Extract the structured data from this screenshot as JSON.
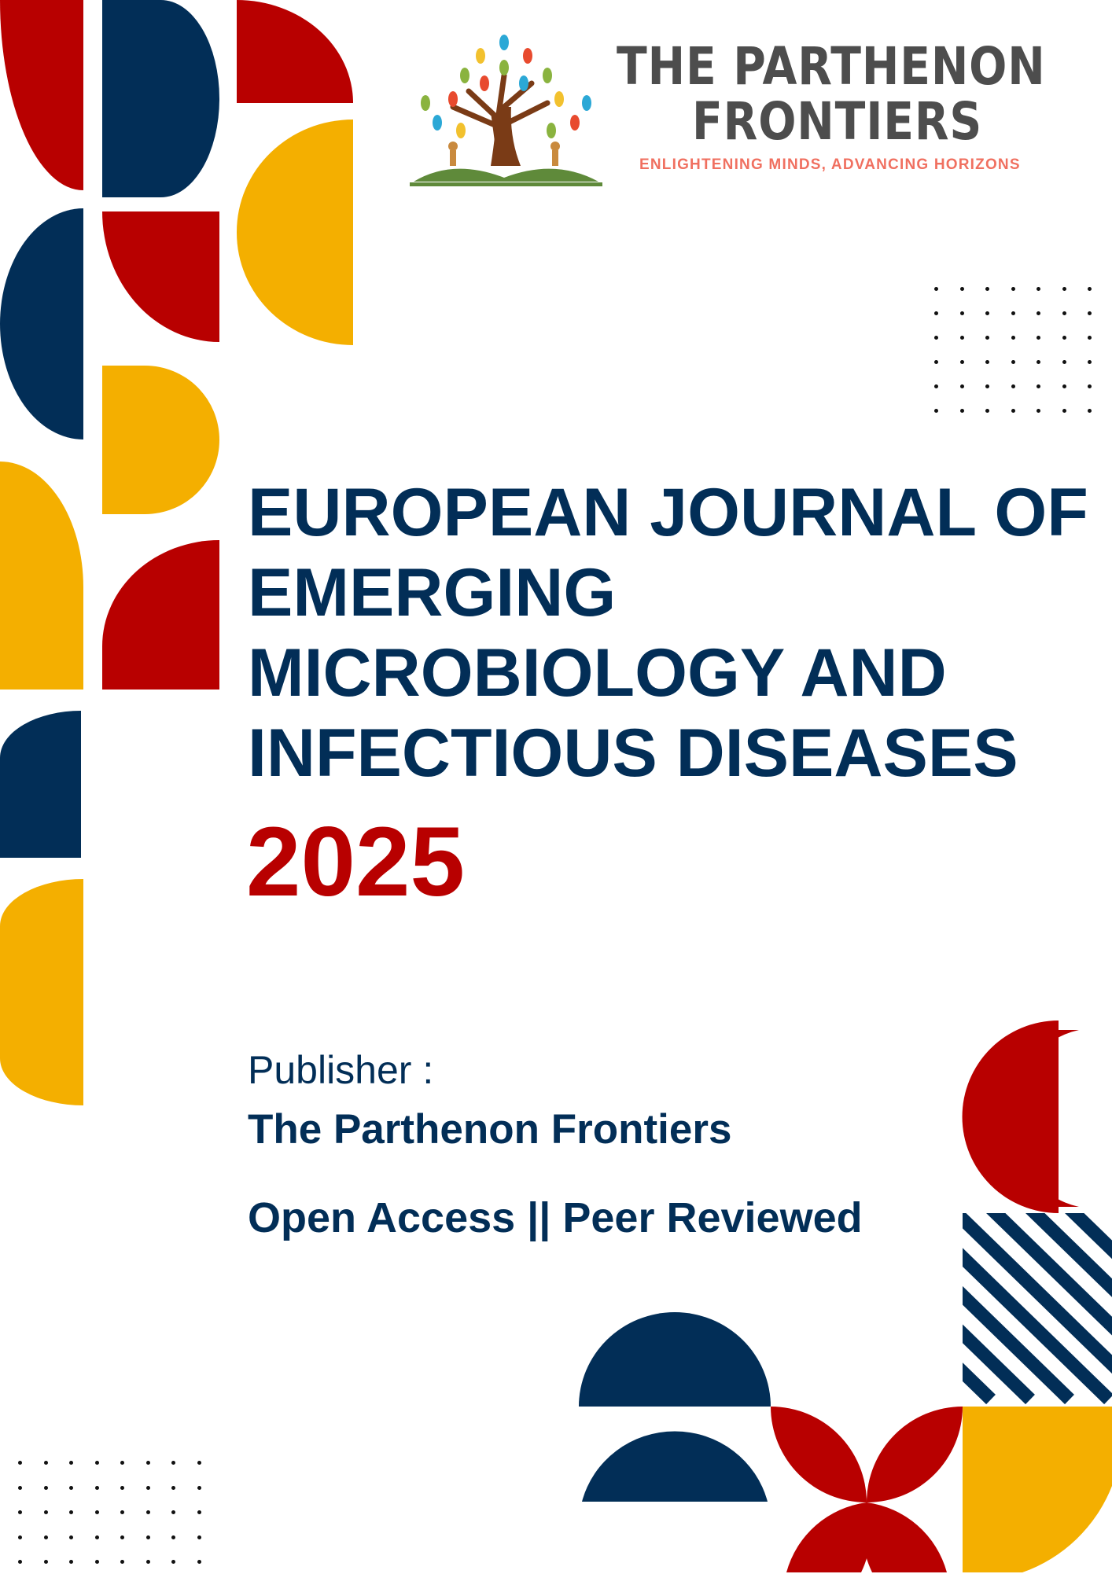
{
  "logo": {
    "name_line1": "THE PARTHENON",
    "name_line2": "FRONTIERS",
    "tagline": "ENLIGHTENING MINDS, ADVANCING HORIZONS",
    "icon": "tree-on-book-icon"
  },
  "title": {
    "lines": [
      "EUROPEAN JOURNAL OF",
      "EMERGING",
      "MICROBIOLOGY AND",
      "INFECTIOUS DISEASES"
    ],
    "year": "2025"
  },
  "publisher": {
    "label": "Publisher :",
    "name": "The Parthenon Frontiers"
  },
  "access_line": "Open Access || Peer Reviewed",
  "colors": {
    "red": "#b80000",
    "navy": "#022e57",
    "yellow": "#f4af00",
    "logo_text": "#4d4d4d",
    "tagline": "#f07060"
  }
}
